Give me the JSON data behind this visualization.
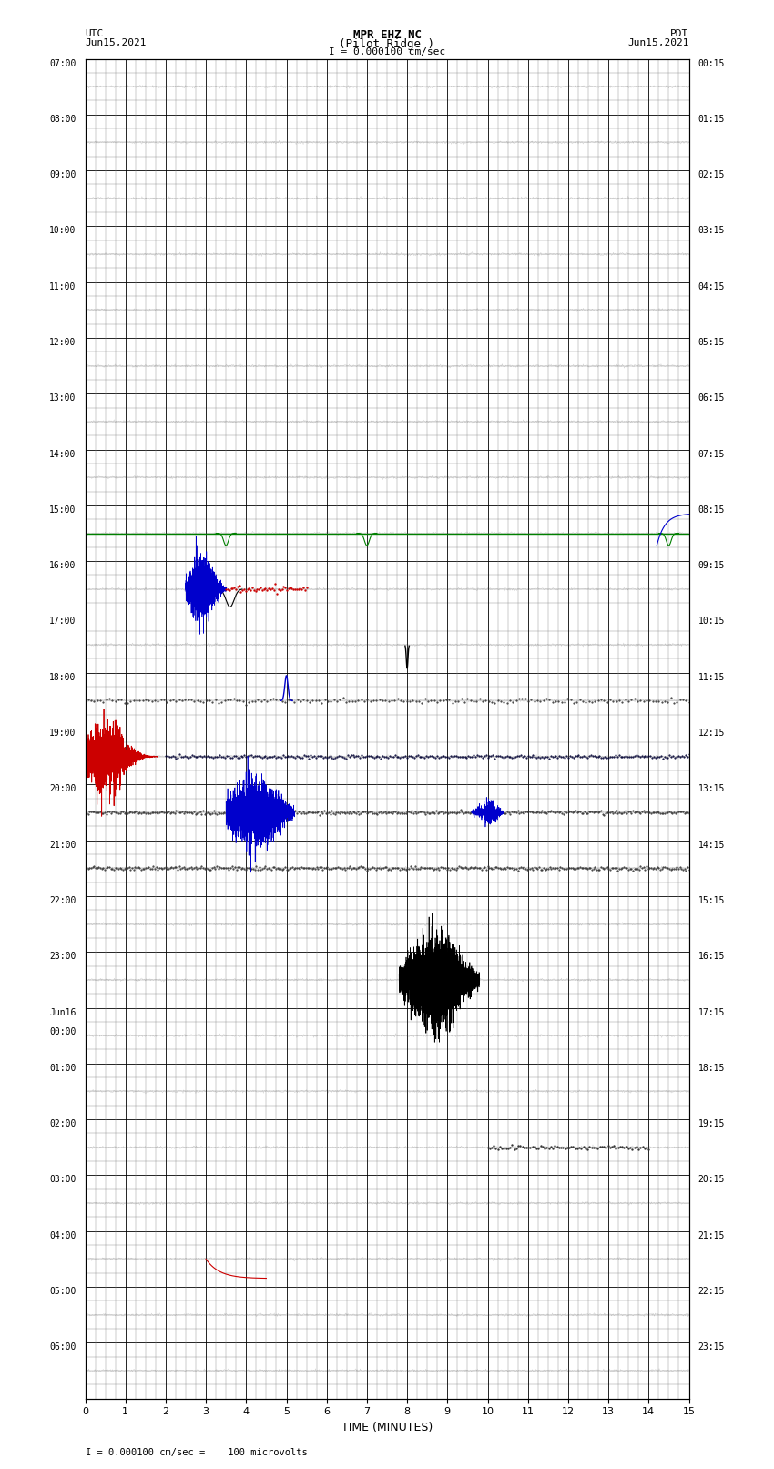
{
  "title_line1": "MPR EHZ NC",
  "title_line2": "(Pilot Ridge )",
  "title_line3": "I = 0.000100 cm/sec",
  "left_header_line1": "UTC",
  "left_header_line2": "Jun15,2021",
  "right_header_line1": "PDT",
  "right_header_line2": "Jun15,2021",
  "footer_text": "I = 0.000100 cm/sec =    100 microvolts",
  "xlabel": "TIME (MINUTES)",
  "xlim": [
    0,
    15
  ],
  "xticks": [
    0,
    1,
    2,
    3,
    4,
    5,
    6,
    7,
    8,
    9,
    10,
    11,
    12,
    13,
    14,
    15
  ],
  "num_rows": 24,
  "bg_color": "#ffffff",
  "utc_labels": [
    "07:00",
    "08:00",
    "09:00",
    "10:00",
    "11:00",
    "12:00",
    "13:00",
    "14:00",
    "15:00",
    "16:00",
    "17:00",
    "18:00",
    "19:00",
    "20:00",
    "21:00",
    "22:00",
    "23:00",
    "Jun16\n00:00",
    "01:00",
    "02:00",
    "03:00",
    "04:00",
    "05:00",
    "06:00"
  ],
  "pdt_labels": [
    "00:15",
    "01:15",
    "02:15",
    "03:15",
    "04:15",
    "05:15",
    "06:15",
    "07:15",
    "08:15",
    "09:15",
    "10:15",
    "11:15",
    "12:15",
    "13:15",
    "14:15",
    "15:15",
    "16:15",
    "17:15",
    "18:15",
    "19:15",
    "20:15",
    "21:15",
    "22:15",
    "23:15"
  ],
  "major_grid_color": "#000000",
  "minor_grid_color": "#888888",
  "major_lw": 0.6,
  "minor_lw": 0.3,
  "label_fontsize": 7.0,
  "green_line_color": "#008000",
  "green_row_idx": 8
}
